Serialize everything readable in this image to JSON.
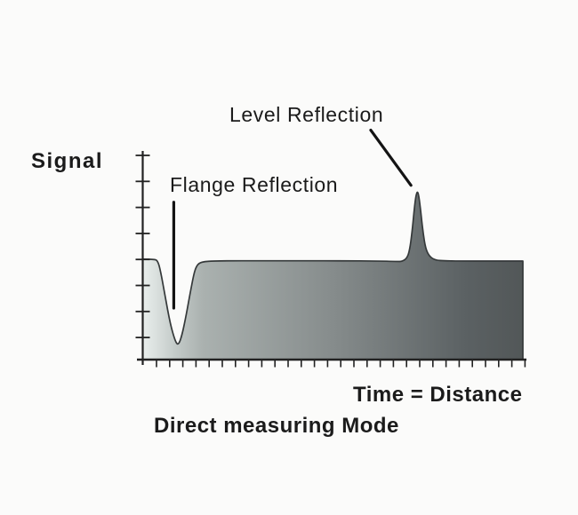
{
  "figure": {
    "background_color": "#fbfbfa",
    "text_color": "#1b1b1b"
  },
  "labels": {
    "y_axis_title": "Signal",
    "x_axis_title": "Time = Distance",
    "caption": "Direct measuring Mode",
    "annotation_level": "Level Reflection",
    "annotation_flange": "Flange Reflection"
  },
  "chart_data": {
    "type": "area",
    "title": "",
    "xlabel": "Time = Distance",
    "ylabel": "Signal",
    "xlim": [
      0,
      28.6
    ],
    "ylim": [
      0,
      8
    ],
    "grid": false,
    "ticks_labeled": false,
    "axes": {
      "x_tick_count": 29,
      "y_tick_count": 8
    },
    "baseline_level": 3.8,
    "series": [
      {
        "name": "echo-signal",
        "points": [
          [
            0,
            3.86
          ],
          [
            0.9,
            3.86
          ],
          [
            1.15,
            3.8
          ],
          [
            1.35,
            3.45
          ],
          [
            1.7,
            2.45
          ],
          [
            2.1,
            1.35
          ],
          [
            2.45,
            0.72
          ],
          [
            2.67,
            0.55
          ],
          [
            2.9,
            0.82
          ],
          [
            3.2,
            1.5
          ],
          [
            3.55,
            2.5
          ],
          [
            3.85,
            3.3
          ],
          [
            4.05,
            3.6
          ],
          [
            4.3,
            3.73
          ],
          [
            4.8,
            3.78
          ],
          [
            6,
            3.8
          ],
          [
            9,
            3.8
          ],
          [
            12,
            3.8
          ],
          [
            15,
            3.8
          ],
          [
            17.5,
            3.79
          ],
          [
            19.0,
            3.77
          ],
          [
            19.4,
            3.77
          ],
          [
            19.8,
            3.92
          ],
          [
            20.0,
            4.35
          ],
          [
            20.15,
            5.0
          ],
          [
            20.3,
            5.8
          ],
          [
            20.42,
            6.3
          ],
          [
            20.53,
            6.48
          ],
          [
            20.64,
            6.3
          ],
          [
            20.78,
            5.7
          ],
          [
            20.95,
            4.9
          ],
          [
            21.15,
            4.25
          ],
          [
            21.45,
            3.95
          ],
          [
            21.9,
            3.82
          ],
          [
            22.5,
            3.8
          ],
          [
            23.5,
            3.79
          ],
          [
            26,
            3.79
          ],
          [
            28.4,
            3.79
          ]
        ]
      }
    ],
    "annotations": [
      {
        "text": "Flange Reflection",
        "feature": "dip",
        "feature_x": 2.67,
        "feature_y_min": 0.55,
        "leader_line": {
          "from": [
            2.35,
            6.05
          ],
          "to": [
            2.35,
            1.98
          ]
        }
      },
      {
        "text": "Level Reflection",
        "feature": "peak",
        "feature_x": 20.53,
        "feature_y_max": 6.48,
        "leader_line": {
          "from": [
            17.05,
            8.82
          ],
          "to": [
            20.05,
            6.7
          ]
        }
      }
    ],
    "colors": {
      "axis": "#222222",
      "outline": "#35393a",
      "leader_line": "#141414",
      "gradient_stops": [
        {
          "offset": 0.0,
          "color": "#eaefed"
        },
        {
          "offset": 0.09,
          "color": "#c2c9c7"
        },
        {
          "offset": 0.16,
          "color": "#aab1af"
        },
        {
          "offset": 0.5,
          "color": "#868c8c"
        },
        {
          "offset": 0.85,
          "color": "#5b6163"
        },
        {
          "offset": 1.0,
          "color": "#525758"
        }
      ]
    }
  }
}
